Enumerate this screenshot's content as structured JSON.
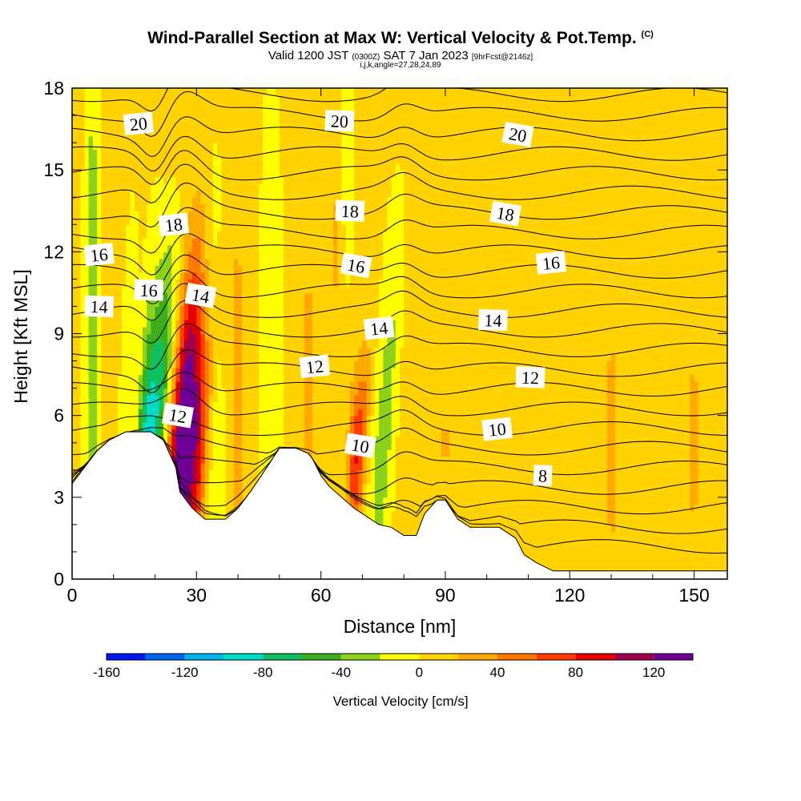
{
  "header": {
    "title": "Wind-Parallel Section at Max W: Vertical Velocity & Pot.Temp.",
    "copyright_mark": "(C)",
    "valid_prefix": "Valid 1200 JST",
    "valid_utc": "(0300Z)",
    "valid_date": "SAT 7 Jan 2023",
    "forecast_info": "[9hrFcst@2146z]",
    "indices_line": "i,j,k,angle=27,28,24,89"
  },
  "chart_data": {
    "type": "contour_section",
    "xlabel": "Distance [nm]",
    "ylabel": "Height [Kft MSL]",
    "xlim": [
      0,
      158
    ],
    "ylim": [
      0,
      18
    ],
    "x_ticks": [
      0,
      30,
      60,
      90,
      120,
      150
    ],
    "y_ticks": [
      0,
      3,
      6,
      9,
      12,
      15,
      18
    ],
    "x_tick_labels": [
      "0",
      "30",
      "60",
      "90",
      "120",
      "150"
    ],
    "y_tick_labels": [
      "0",
      "3",
      "6",
      "9",
      "12",
      "15",
      "18"
    ],
    "colorbar": {
      "title": "Vertical Velocity [cm/s]",
      "bounds": [
        -160,
        -140,
        -120,
        -100,
        -80,
        -60,
        -40,
        -20,
        0,
        20,
        40,
        60,
        80,
        100,
        120,
        140
      ],
      "tick_values": [
        -160,
        -120,
        -80,
        -40,
        0,
        40,
        80,
        120
      ],
      "tick_labels": [
        "-160",
        "-120",
        "-80",
        "-40",
        "0",
        "40",
        "80",
        "120"
      ],
      "colors": [
        "#0018f0",
        "#0064f0",
        "#00b4f0",
        "#00dcc8",
        "#10c060",
        "#3cb01c",
        "#8cd21c",
        "#ffff00",
        "#ffd200",
        "#ffaa00",
        "#ff7800",
        "#ff3c00",
        "#e60000",
        "#a0004b",
        "#6e0096"
      ]
    },
    "theta_contour_labels": [
      {
        "text": "20",
        "x": 16.0,
        "y": 16.7
      },
      {
        "text": "20",
        "x": 64.5,
        "y": 16.8
      },
      {
        "text": "20",
        "x": 107.5,
        "y": 16.3
      },
      {
        "text": "18",
        "x": 24.5,
        "y": 13.0
      },
      {
        "text": "18",
        "x": 67.0,
        "y": 13.5
      },
      {
        "text": "18",
        "x": 104.5,
        "y": 13.4
      },
      {
        "text": "16",
        "x": 6.5,
        "y": 11.9
      },
      {
        "text": "16",
        "x": 18.5,
        "y": 10.6
      },
      {
        "text": "16",
        "x": 68.5,
        "y": 11.5
      },
      {
        "text": "16",
        "x": 115.5,
        "y": 11.6
      },
      {
        "text": "14",
        "x": 6.5,
        "y": 10.0
      },
      {
        "text": "14",
        "x": 31.0,
        "y": 10.4
      },
      {
        "text": "14",
        "x": 74.0,
        "y": 9.2
      },
      {
        "text": "14",
        "x": 101.5,
        "y": 9.5
      },
      {
        "text": "12",
        "x": 25.5,
        "y": 6.0
      },
      {
        "text": "12",
        "x": 58.5,
        "y": 7.8
      },
      {
        "text": "12",
        "x": 110.5,
        "y": 7.4
      },
      {
        "text": "10",
        "x": 69.5,
        "y": 4.9
      },
      {
        "text": "10",
        "x": 102.5,
        "y": 5.5
      },
      {
        "text": "8",
        "x": 113.5,
        "y": 3.8
      }
    ],
    "terrain_kft": [
      [
        0,
        3.5
      ],
      [
        3,
        4.1
      ],
      [
        6,
        4.7
      ],
      [
        9,
        5.1
      ],
      [
        13,
        5.4
      ],
      [
        19,
        5.4
      ],
      [
        22,
        5.1
      ],
      [
        25,
        4.1
      ],
      [
        26,
        3.2
      ],
      [
        29,
        2.6
      ],
      [
        32,
        2.2
      ],
      [
        37,
        2.2
      ],
      [
        40,
        2.6
      ],
      [
        43,
        3.2
      ],
      [
        47,
        4.1
      ],
      [
        50,
        4.8
      ],
      [
        54,
        4.8
      ],
      [
        57,
        4.6
      ],
      [
        58,
        4.4
      ],
      [
        60,
        3.8
      ],
      [
        62,
        3.4
      ],
      [
        65,
        3.0
      ],
      [
        68,
        2.6
      ],
      [
        71,
        2.3
      ],
      [
        74,
        2.0
      ],
      [
        77,
        1.9
      ],
      [
        80,
        1.6
      ],
      [
        83,
        1.6
      ],
      [
        85,
        2.4
      ],
      [
        88,
        2.9
      ],
      [
        90,
        2.9
      ],
      [
        93,
        2.2
      ],
      [
        96,
        1.9
      ],
      [
        100,
        1.9
      ],
      [
        103,
        1.9
      ],
      [
        107,
        1.5
      ],
      [
        109,
        0.9
      ],
      [
        112,
        0.6
      ],
      [
        116,
        0.3
      ],
      [
        158,
        0.3
      ]
    ]
  }
}
